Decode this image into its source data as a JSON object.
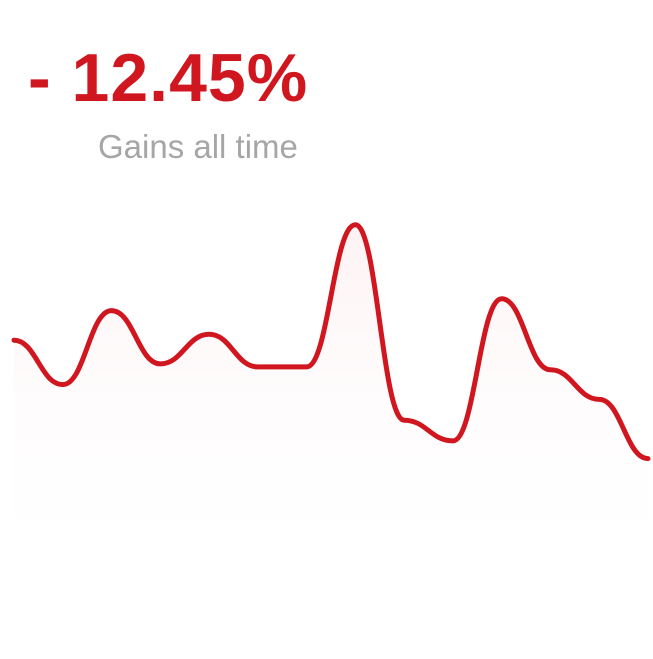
{
  "header": {
    "gain_value": "- 12.45%",
    "gain_caption": "Gains all time"
  },
  "colors": {
    "accent": "#d0161f",
    "caption": "#a6a6a6",
    "fill_top": "#fbe8ea",
    "background": "#ffffff"
  },
  "chart_data": {
    "type": "area",
    "title": "",
    "xlabel": "",
    "ylabel": "",
    "grid": false,
    "legend": "none",
    "ylim": [
      0,
      100
    ],
    "series": [
      {
        "values": [
          56,
          41,
          66,
          48,
          58,
          47,
          47,
          95,
          29,
          22,
          70,
          46,
          36,
          16
        ]
      }
    ]
  }
}
